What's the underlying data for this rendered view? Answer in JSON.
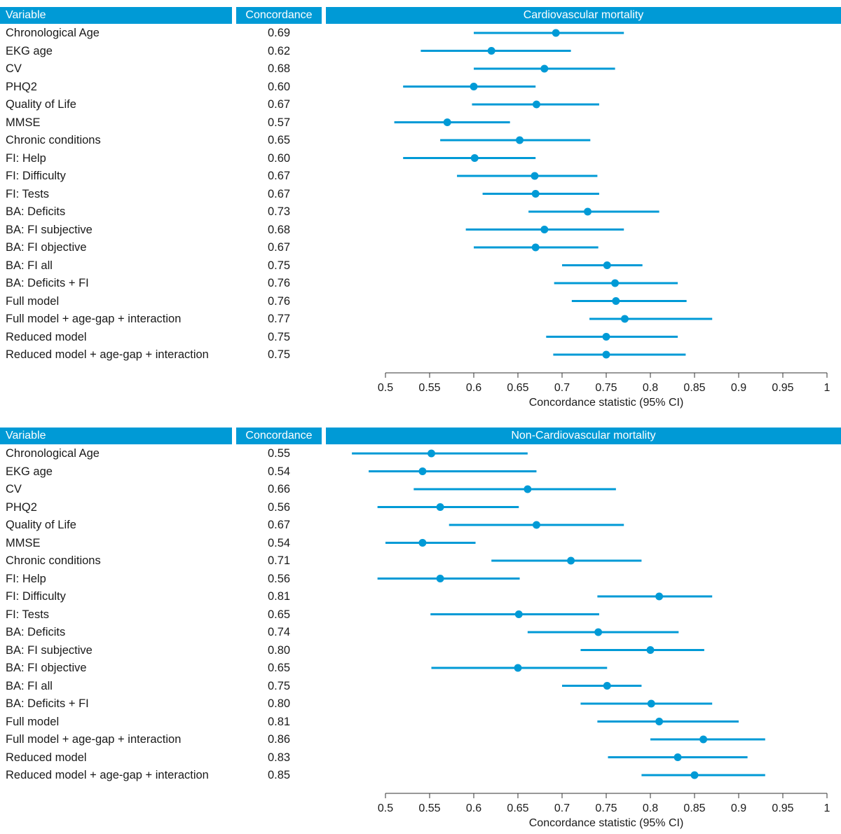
{
  "colors": {
    "header_bg": "#009ad6",
    "marker": "#009ad6",
    "axis": "#333333"
  },
  "headers": {
    "variable": "Variable",
    "concordance": "Concordance"
  },
  "chart_data": [
    {
      "type": "forest",
      "title": "Cardiovascular mortality",
      "xlabel": "Concordance statistic (95% CI)",
      "xlim": [
        0.5,
        1
      ],
      "xticks": [
        "0.5",
        "0.55",
        "0.6",
        "0.65",
        "0.7",
        "0.75",
        "0.8",
        "0.85",
        "0.9",
        "0.95",
        "1"
      ],
      "rows": [
        {
          "label": "Chronological Age",
          "value": "0.69",
          "est": 0.693,
          "lo": 0.6,
          "hi": 0.77
        },
        {
          "label": "EKG age",
          "value": "0.62",
          "est": 0.62,
          "lo": 0.54,
          "hi": 0.71
        },
        {
          "label": "CV",
          "value": "0.68",
          "est": 0.68,
          "lo": 0.6,
          "hi": 0.76
        },
        {
          "label": "PHQ2",
          "value": "0.60",
          "est": 0.6,
          "lo": 0.52,
          "hi": 0.67
        },
        {
          "label": "Quality of Life",
          "value": "0.67",
          "est": 0.671,
          "lo": 0.598,
          "hi": 0.742
        },
        {
          "label": "MMSE",
          "value": "0.57",
          "est": 0.57,
          "lo": 0.51,
          "hi": 0.641
        },
        {
          "label": "Chronic conditions",
          "value": "0.65",
          "est": 0.652,
          "lo": 0.562,
          "hi": 0.732
        },
        {
          "label": "FI: Help",
          "value": "0.60",
          "est": 0.601,
          "lo": 0.52,
          "hi": 0.67
        },
        {
          "label": "FI: Difficulty",
          "value": "0.67",
          "est": 0.669,
          "lo": 0.581,
          "hi": 0.74
        },
        {
          "label": "FI: Tests",
          "value": "0.67",
          "est": 0.67,
          "lo": 0.61,
          "hi": 0.742
        },
        {
          "label": "BA: Deficits",
          "value": "0.73",
          "est": 0.729,
          "lo": 0.662,
          "hi": 0.81
        },
        {
          "label": "BA: FI subjective",
          "value": "0.68",
          "est": 0.68,
          "lo": 0.591,
          "hi": 0.77
        },
        {
          "label": "BA: FI objective",
          "value": "0.67",
          "est": 0.67,
          "lo": 0.6,
          "hi": 0.741
        },
        {
          "label": "BA: FI all",
          "value": "0.75",
          "est": 0.751,
          "lo": 0.7,
          "hi": 0.791
        },
        {
          "label": "BA: Deficits + FI",
          "value": "0.76",
          "est": 0.76,
          "lo": 0.691,
          "hi": 0.831
        },
        {
          "label": "Full model",
          "value": "0.76",
          "est": 0.761,
          "lo": 0.711,
          "hi": 0.841
        },
        {
          "label": "Full model + age-gap + interaction",
          "value": "0.77",
          "est": 0.771,
          "lo": 0.731,
          "hi": 0.87
        },
        {
          "label": "Reduced model",
          "value": "0.75",
          "est": 0.75,
          "lo": 0.682,
          "hi": 0.831
        },
        {
          "label": "Reduced model + age-gap + interaction",
          "value": "0.75",
          "est": 0.75,
          "lo": 0.69,
          "hi": 0.84
        }
      ]
    },
    {
      "type": "forest",
      "title": "Non-Cardiovascular mortality",
      "xlabel": "Concordance statistic (95% CI)",
      "xlim": [
        0.5,
        1
      ],
      "xticks": [
        "0.5",
        "0.55",
        "0.6",
        "0.65",
        "0.7",
        "0.75",
        "0.8",
        "0.85",
        "0.9",
        "0.95",
        "1"
      ],
      "rows": [
        {
          "label": "Chronological Age",
          "value": "0.55",
          "est": 0.552,
          "lo": 0.462,
          "hi": 0.661
        },
        {
          "label": "EKG age",
          "value": "0.54",
          "est": 0.542,
          "lo": 0.481,
          "hi": 0.671
        },
        {
          "label": "CV",
          "value": "0.66",
          "est": 0.661,
          "lo": 0.532,
          "hi": 0.761
        },
        {
          "label": "PHQ2",
          "value": "0.56",
          "est": 0.562,
          "lo": 0.491,
          "hi": 0.651
        },
        {
          "label": "Quality of Life",
          "value": "0.67",
          "est": 0.671,
          "lo": 0.572,
          "hi": 0.77
        },
        {
          "label": "MMSE",
          "value": "0.54",
          "est": 0.542,
          "lo": 0.5,
          "hi": 0.602
        },
        {
          "label": "Chronic conditions",
          "value": "0.71",
          "est": 0.71,
          "lo": 0.62,
          "hi": 0.79
        },
        {
          "label": "FI: Help",
          "value": "0.56",
          "est": 0.562,
          "lo": 0.491,
          "hi": 0.652
        },
        {
          "label": "FI: Difficulty",
          "value": "0.81",
          "est": 0.81,
          "lo": 0.74,
          "hi": 0.87
        },
        {
          "label": "FI: Tests",
          "value": "0.65",
          "est": 0.651,
          "lo": 0.551,
          "hi": 0.742
        },
        {
          "label": "BA: Deficits",
          "value": "0.74",
          "est": 0.741,
          "lo": 0.661,
          "hi": 0.832
        },
        {
          "label": "BA: FI subjective",
          "value": "0.80",
          "est": 0.8,
          "lo": 0.721,
          "hi": 0.861
        },
        {
          "label": "BA: FI objective",
          "value": "0.65",
          "est": 0.65,
          "lo": 0.552,
          "hi": 0.751
        },
        {
          "label": "BA: FI all",
          "value": "0.75",
          "est": 0.751,
          "lo": 0.7,
          "hi": 0.79
        },
        {
          "label": "BA: Deficits + FI",
          "value": "0.80",
          "est": 0.801,
          "lo": 0.721,
          "hi": 0.87
        },
        {
          "label": "Full model",
          "value": "0.81",
          "est": 0.81,
          "lo": 0.74,
          "hi": 0.9
        },
        {
          "label": "Full model + age-gap + interaction",
          "value": "0.86",
          "est": 0.86,
          "lo": 0.8,
          "hi": 0.93
        },
        {
          "label": "Reduced model",
          "value": "0.83",
          "est": 0.831,
          "lo": 0.752,
          "hi": 0.91
        },
        {
          "label": "Reduced model + age-gap + interaction",
          "value": "0.85",
          "est": 0.85,
          "lo": 0.79,
          "hi": 0.93
        }
      ]
    }
  ]
}
